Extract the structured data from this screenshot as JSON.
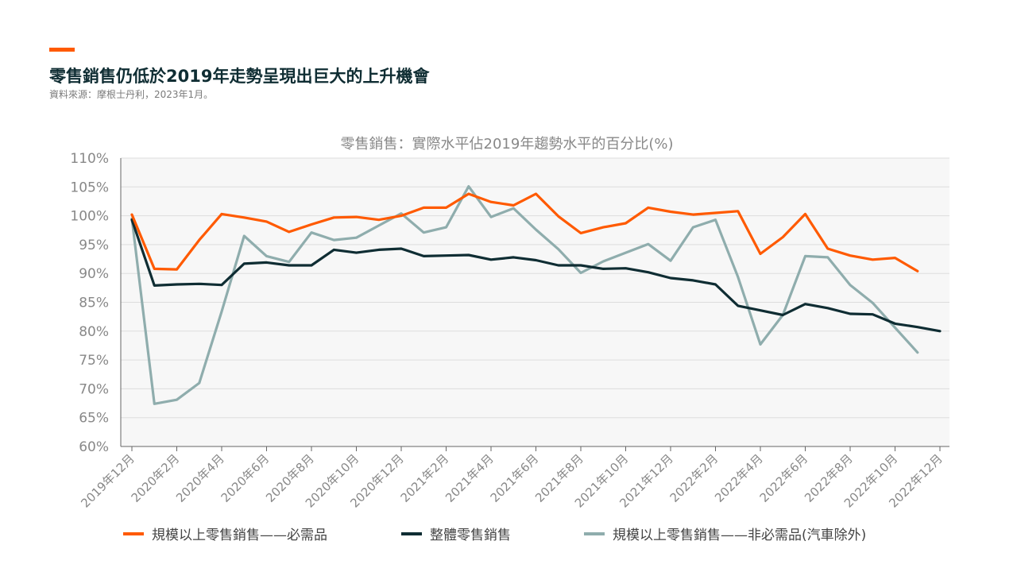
{
  "header": {
    "title": "零售銷售仍低於2019年走勢呈現出巨大的上升機會",
    "source": "資料來源：摩根士丹利，2023年1月。"
  },
  "colors": {
    "accent": "#ff5a00",
    "essential": "#ff5a00",
    "total": "#0f2d33",
    "nonessential": "#8fadad",
    "plot_bg": "#f7f7f7",
    "grid": "#dddddd"
  },
  "chart_data": {
    "type": "line",
    "title": "零售銷售：實際水平佔2019年趨勢水平的百分比(%)",
    "y_ticks": [
      "60%",
      "65%",
      "70%",
      "75%",
      "80%",
      "85%",
      "90%",
      "95%",
      "100%",
      "105%",
      "110%"
    ],
    "ylim": [
      60,
      110
    ],
    "x_tick_labels": [
      "2019年12月",
      "2020年2月",
      "2020年4月",
      "2020年6月",
      "2020年8月",
      "2020年10月",
      "2020年12月",
      "2021年2月",
      "2021年4月",
      "2021年6月",
      "2021年8月",
      "2021年10月",
      "2021年12月",
      "2022年2月",
      "2022年4月",
      "2022年6月",
      "2022年8月",
      "2022年10月",
      "2022年12月"
    ],
    "x": [
      "2019-12",
      "2020-01",
      "2020-02",
      "2020-03",
      "2020-04",
      "2020-05",
      "2020-06",
      "2020-07",
      "2020-08",
      "2020-09",
      "2020-10",
      "2020-11",
      "2020-12",
      "2021-01",
      "2021-02",
      "2021-03",
      "2021-04",
      "2021-05",
      "2021-06",
      "2021-07",
      "2021-08",
      "2021-09",
      "2021-10",
      "2021-11",
      "2021-12",
      "2022-01",
      "2022-02",
      "2022-03",
      "2022-04",
      "2022-05",
      "2022-06",
      "2022-07",
      "2022-08",
      "2022-09",
      "2022-10",
      "2022-11",
      "2022-12"
    ],
    "grid": true,
    "legend_position": "bottom",
    "series": [
      {
        "name": "規模以上零售銷售——必需品",
        "color": "#ff5a00",
        "values": [
          100.2,
          90.8,
          90.7,
          95.8,
          100.3,
          99.7,
          99.0,
          97.2,
          98.5,
          99.7,
          99.8,
          99.3,
          100.0,
          101.4,
          101.4,
          103.8,
          102.4,
          101.8,
          103.8,
          99.9,
          97.0,
          98.0,
          98.7,
          101.4,
          100.7,
          100.2,
          100.5,
          100.8,
          93.4,
          96.3,
          100.3,
          94.3,
          93.1,
          92.4,
          92.7,
          90.4,
          null
        ]
      },
      {
        "name": "整體零售銷售",
        "color": "#0f2d33",
        "values": [
          99.3,
          87.9,
          88.1,
          88.2,
          88.0,
          91.7,
          91.9,
          91.4,
          91.4,
          94.1,
          93.6,
          94.1,
          94.3,
          93.0,
          93.1,
          93.2,
          92.4,
          92.8,
          92.3,
          91.4,
          91.4,
          90.8,
          90.9,
          90.2,
          89.2,
          88.8,
          88.1,
          84.4,
          83.6,
          82.8,
          84.7,
          84.0,
          83.0,
          82.9,
          81.3,
          80.7,
          80.0
        ]
      },
      {
        "name": "規模以上零售銷售——非必需品(汽車除外)",
        "color": "#8fadad",
        "values": [
          99.5,
          67.4,
          68.1,
          71.0,
          83.4,
          96.5,
          93.0,
          92.0,
          97.1,
          95.8,
          96.2,
          98.3,
          100.4,
          97.1,
          98.0,
          105.1,
          99.8,
          101.3,
          97.6,
          94.2,
          90.1,
          92.1,
          93.6,
          95.1,
          92.2,
          98.0,
          99.3,
          89.4,
          77.7,
          82.8,
          93.0,
          92.8,
          88.0,
          84.9,
          80.6,
          76.3,
          null
        ]
      }
    ]
  }
}
